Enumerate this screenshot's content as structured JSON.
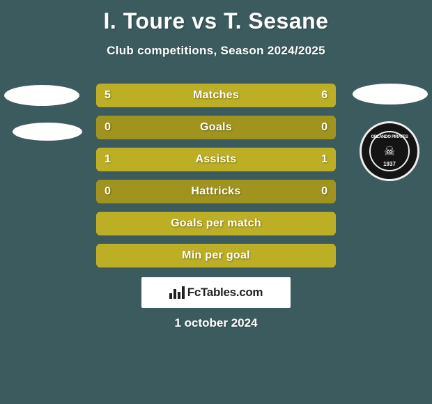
{
  "colors": {
    "background": "#3c5b5e",
    "title": "#ffffff",
    "subtitle": "#ffffff",
    "row_bg": "#a0941f",
    "fill_left": "#bcae25",
    "fill_right": "#bcae25",
    "row_text": "#ffffff",
    "badge_left": "#ffffff",
    "badge_right": "#ffffff",
    "date": "#ffffff",
    "fc_box_bg": "#ffffff"
  },
  "title": "I. Toure vs T. Sesane",
  "subtitle": "Club competitions, Season 2024/2025",
  "club_right": {
    "name": "ORLANDO PIRATES",
    "year": "1937"
  },
  "rows": [
    {
      "label": "Matches",
      "left": "5",
      "right": "6",
      "left_pct": 45,
      "right_pct": 55
    },
    {
      "label": "Goals",
      "left": "0",
      "right": "0",
      "left_pct": 0,
      "right_pct": 0
    },
    {
      "label": "Assists",
      "left": "1",
      "right": "1",
      "left_pct": 50,
      "right_pct": 50
    },
    {
      "label": "Hattricks",
      "left": "0",
      "right": "0",
      "left_pct": 0,
      "right_pct": 0
    },
    {
      "label": "Goals per match",
      "left": "",
      "right": "",
      "left_pct": 100,
      "right_pct": 0
    },
    {
      "label": "Min per goal",
      "left": "",
      "right": "",
      "left_pct": 100,
      "right_pct": 0
    }
  ],
  "fc_brand": "FcTables.com",
  "date": "1 october 2024"
}
